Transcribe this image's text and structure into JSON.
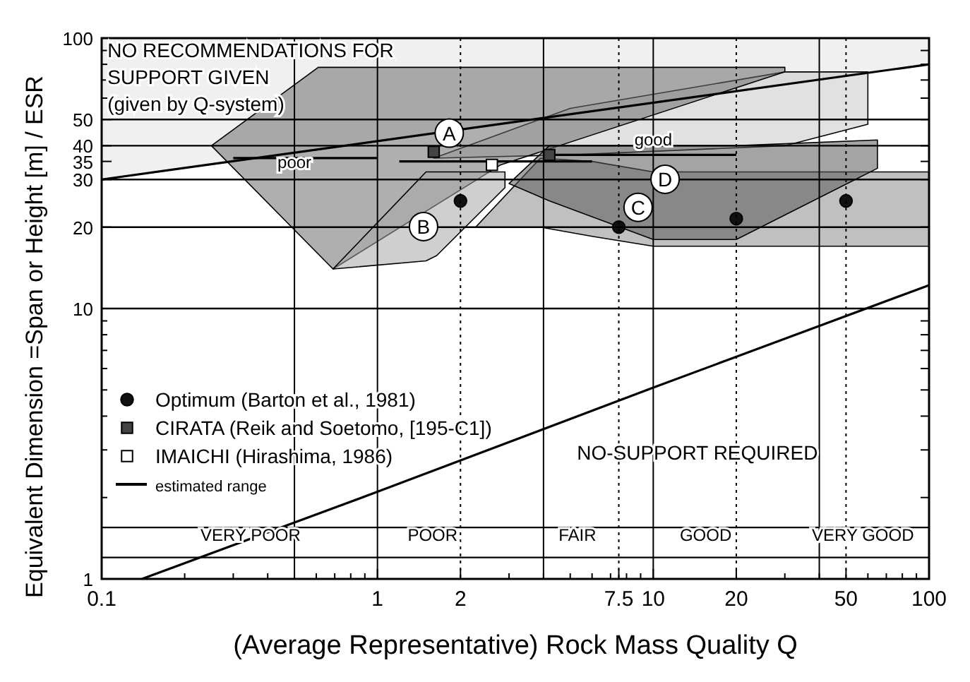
{
  "chart_data": {
    "type": "line",
    "xlabel": "(Average Representative) Rock Mass Quality Q",
    "ylabel": "Equivalent Dimension =Span or Height [m] / ESR",
    "log": "xy",
    "grid": false,
    "legend": "left",
    "xlim": [
      0.1,
      100
    ],
    "ylim": [
      1,
      100
    ],
    "xticks": [
      0.1,
      {
        "value": 0.2,
        "label": null
      },
      {
        "value": 0.3,
        "label": null
      },
      {
        "value": 0.4,
        "label": null
      },
      {
        "value": 0.5,
        "label": null
      },
      {
        "value": 0.6,
        "label": null
      },
      {
        "value": 0.7,
        "label": null
      },
      {
        "value": 0.8,
        "label": null
      },
      {
        "value": 0.9,
        "label": null
      },
      1,
      2,
      {
        "value": 3,
        "label": null
      },
      {
        "value": 4,
        "label": null
      },
      {
        "value": 5,
        "label": null
      },
      {
        "value": 6,
        "label": null
      },
      {
        "value": 7,
        "label": null
      },
      7.5,
      {
        "value": 8,
        "label": null
      },
      {
        "value": 9,
        "label": null
      },
      10,
      20,
      {
        "value": 30,
        "label": null
      },
      {
        "value": 40,
        "label": null
      },
      50,
      {
        "value": 60,
        "label": null
      },
      {
        "value": 70,
        "label": null
      },
      {
        "value": 80,
        "label": null
      },
      {
        "value": 90,
        "label": null
      },
      100
    ],
    "yticks": [
      1,
      {
        "value": 2,
        "label": null
      },
      {
        "value": 3,
        "label": null
      },
      {
        "value": 4,
        "label": null
      },
      {
        "value": 5,
        "label": null
      },
      {
        "value": 6,
        "label": null
      },
      {
        "value": 7,
        "label": null
      },
      {
        "value": 8,
        "label": null
      },
      {
        "value": 9,
        "label": null
      },
      10,
      20,
      30,
      35,
      40,
      50,
      {
        "value": 60,
        "label": null
      },
      {
        "value": 70,
        "label": null
      },
      {
        "value": 80,
        "label": null
      },
      {
        "value": 90,
        "label": null
      },
      100
    ],
    "series": [
      {
        "type": "area",
        "color": "#e4e4e4",
        "x": [
          0.1,
          100,
          100,
          0.1,
          0.1
        ],
        "values": [
          30,
          80,
          100,
          100,
          30
        ]
      },
      {
        "type": "area",
        "color": "#c8c8c8",
        "x": [
          1.6,
          5,
          30,
          60,
          60,
          30,
          5,
          1.6
        ],
        "values": [
          36,
          37,
          40,
          48,
          75,
          75,
          55,
          36
        ]
      },
      {
        "type": "area",
        "name": "A",
        "color": "#6e6e6e",
        "x": [
          0.25,
          0.69,
          2.8,
          30,
          30,
          0.61,
          0.25
        ],
        "values": [
          40,
          14,
          34,
          75,
          78,
          78,
          40
        ]
      },
      {
        "type": "area",
        "name": "B",
        "color": "#a8a8a8",
        "x": [
          0.69,
          1.5,
          1.64,
          2.9,
          2.9,
          1.5,
          0.69
        ],
        "values": [
          14,
          15,
          15.7,
          28,
          32,
          32,
          14
        ]
      },
      {
        "type": "area",
        "name": "C",
        "color": "#8c8c8c",
        "x": [
          2.27,
          3.9,
          6,
          10,
          100,
          100,
          10,
          6,
          3.9,
          2.27
        ],
        "values": [
          20,
          20,
          18.5,
          17,
          17,
          32,
          32,
          35,
          36,
          20
        ]
      },
      {
        "type": "area",
        "name": "D",
        "color": "#5a5a5a",
        "x": [
          3,
          4.2,
          10,
          20,
          65,
          65,
          20,
          10,
          4.2,
          3
        ],
        "values": [
          29,
          25,
          18,
          18,
          33,
          42,
          40,
          40,
          40,
          29
        ]
      },
      {
        "color": "#000000",
        "x": [
          0.1,
          100
        ],
        "values": [
          30,
          80
        ]
      },
      {
        "color": "#000000",
        "x": [
          0.14,
          1,
          10,
          100
        ],
        "values": [
          1,
          2.1,
          5.1,
          12.2
        ]
      },
      {
        "name": "estimated range",
        "color": "#000000",
        "x": [
          0.3,
          1
        ],
        "values": [
          36,
          36
        ]
      },
      {
        "color": "#000000",
        "x": [
          1.2,
          6
        ],
        "values": [
          35,
          35
        ]
      },
      {
        "color": "#000000",
        "x": [
          4,
          20
        ],
        "values": [
          37,
          37
        ]
      },
      {
        "type": "scatter",
        "name": "Optimum (Barton et al., 1981)",
        "marker": "circle",
        "color": "#111111",
        "x": [
          2,
          7.5,
          20,
          50
        ],
        "values": [
          25,
          20,
          21.5,
          25
        ]
      },
      {
        "type": "scatter",
        "name": "CIRATA (Reik and Soetomo, [195-C1])",
        "marker": "square",
        "color": "#444444",
        "x": [
          1.6,
          4.2
        ],
        "values": [
          38,
          37
        ]
      },
      {
        "type": "scatter",
        "name": "IMAICHI (Hirashima, 1986)",
        "marker": "square",
        "color": "#ffffff",
        "x": [
          2.6
        ],
        "values": [
          34
        ]
      }
    ],
    "ref_lines": [
      {
        "axis": "y",
        "value": 10
      },
      {
        "axis": "y",
        "value": 20
      },
      {
        "axis": "y",
        "value": 30
      },
      {
        "axis": "y",
        "value": 40
      },
      {
        "axis": "y",
        "value": 50
      },
      {
        "axis": "y",
        "value": 1.55
      },
      {
        "axis": "y",
        "value": 1.2
      },
      {
        "axis": "x",
        "value": 0.5
      },
      {
        "axis": "x",
        "value": 1
      },
      {
        "axis": "x",
        "value": 4
      },
      {
        "axis": "x",
        "value": 10
      },
      {
        "axis": "x",
        "value": 40
      },
      {
        "axis": "x",
        "value": 2,
        "line_style": "dotted"
      },
      {
        "axis": "x",
        "value": 7.5,
        "line_style": "dotted"
      },
      {
        "axis": "x",
        "value": 20,
        "line_style": "dotted"
      },
      {
        "axis": "x",
        "value": 50,
        "line_style": "dotted"
      }
    ],
    "annotations": [
      {
        "text": "NO RECOMMENDATIONS FOR\nSUPPORT GIVEN\n(given by Q-system)",
        "x": 0.105,
        "y": 85
      },
      "NO-SUPPORT REQUIRED",
      {
        "text": "poor",
        "x": 0.5,
        "y": 33
      },
      {
        "text": "good",
        "x": 10,
        "y": 40
      },
      "VERY POOR",
      "POOR",
      "FAIR",
      "GOOD",
      "VERY GOOD"
    ]
  }
}
